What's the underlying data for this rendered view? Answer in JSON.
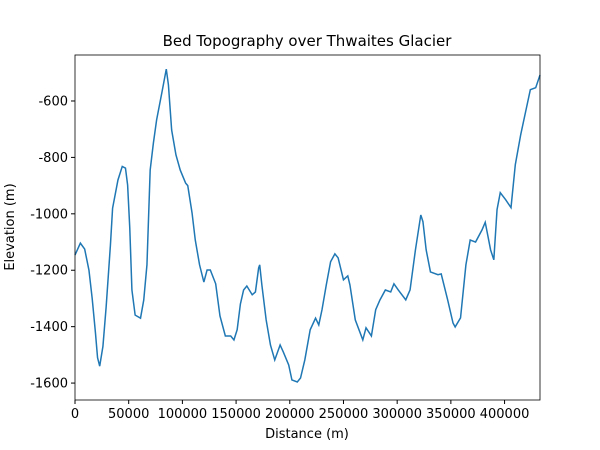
{
  "chart_data": {
    "type": "line",
    "title": "Bed Topography over Thwaites Glacier",
    "x_label": "Distance (m)",
    "y_label": "Elevation (m)",
    "series": [
      {
        "color": "#1f77b4",
        "x": [
          0,
          5000,
          9000,
          13000,
          16000,
          19000,
          21000,
          23000,
          26000,
          29000,
          33000,
          35000,
          40000,
          44000,
          47000,
          49000,
          51000,
          53000,
          56000,
          61000,
          64000,
          67000,
          70000,
          73000,
          76000,
          81000,
          85000,
          87000,
          90000,
          94000,
          98000,
          103000,
          105000,
          109000,
          112000,
          116000,
          120000,
          123000,
          126000,
          131000,
          135000,
          140000,
          145000,
          148000,
          151000,
          154000,
          157000,
          160000,
          165000,
          168000,
          171000,
          172000,
          174000,
          178000,
          182000,
          186000,
          191000,
          194000,
          199000,
          202000,
          207000,
          210000,
          214000,
          219000,
          224000,
          227000,
          230000,
          234000,
          238000,
          242000,
          245000,
          250000,
          254000,
          256000,
          261000,
          268000,
          271000,
          276000,
          280000,
          284000,
          289000,
          294000,
          297000,
          301000,
          308000,
          312000,
          317000,
          322000,
          324000,
          327000,
          331000,
          338000,
          341000,
          347000,
          352000,
          354000,
          359000,
          364000,
          368000,
          373000,
          379000,
          382000,
          387000,
          390000,
          393000,
          396000,
          401000,
          406000,
          410000,
          415000,
          420000,
          424000,
          429000,
          433000
        ],
        "values": [
          -1146,
          -1104,
          -1125,
          -1200,
          -1300,
          -1420,
          -1510,
          -1540,
          -1470,
          -1330,
          -1110,
          -980,
          -880,
          -832,
          -838,
          -898,
          -1050,
          -1270,
          -1359,
          -1370,
          -1306,
          -1181,
          -845,
          -749,
          -667,
          -568,
          -487,
          -543,
          -703,
          -791,
          -845,
          -891,
          -900,
          -997,
          -1093,
          -1181,
          -1242,
          -1199,
          -1199,
          -1248,
          -1362,
          -1433,
          -1433,
          -1447,
          -1411,
          -1320,
          -1270,
          -1256,
          -1287,
          -1277,
          -1192,
          -1181,
          -1252,
          -1376,
          -1465,
          -1518,
          -1465,
          -1490,
          -1536,
          -1589,
          -1596,
          -1582,
          -1518,
          -1411,
          -1370,
          -1394,
          -1340,
          -1252,
          -1170,
          -1142,
          -1156,
          -1234,
          -1220,
          -1252,
          -1376,
          -1447,
          -1404,
          -1433,
          -1340,
          -1305,
          -1270,
          -1277,
          -1248,
          -1270,
          -1305,
          -1270,
          -1128,
          -1004,
          -1028,
          -1128,
          -1206,
          -1216,
          -1213,
          -1305,
          -1387,
          -1401,
          -1369,
          -1181,
          -1093,
          -1100,
          -1057,
          -1030,
          -1128,
          -1163,
          -985,
          -925,
          -950,
          -978,
          -826,
          -720,
          -631,
          -560,
          -553,
          -508
        ]
      }
    ],
    "xlim": [
      0,
      433000
    ],
    "xticks": [
      0,
      50000,
      100000,
      150000,
      200000,
      250000,
      300000,
      350000,
      400000
    ],
    "ylim": [
      -1660,
      -437
    ],
    "yticks": [
      -1600,
      -1400,
      -1200,
      -1000,
      -800,
      -600
    ],
    "grid": false
  }
}
